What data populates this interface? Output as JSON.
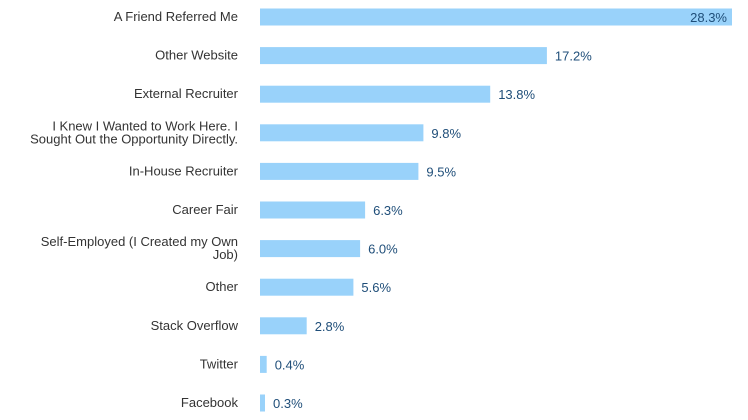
{
  "chart_data": {
    "type": "bar",
    "orientation": "horizontal",
    "categories": [
      "A Friend Referred Me",
      "Other Website",
      "External Recruiter",
      "I Knew I Wanted to Work Here. I Sought Out the Opportunity Directly.",
      "In-House Recruiter",
      "Career Fair",
      "Self-Employed (I Created my Own Job)",
      "Other",
      "Stack Overflow",
      "Twitter",
      "Facebook"
    ],
    "category_lines": [
      [
        "A Friend Referred Me"
      ],
      [
        "Other Website"
      ],
      [
        "External Recruiter"
      ],
      [
        "I Knew I Wanted to Work Here. I",
        "Sought Out the Opportunity Directly."
      ],
      [
        "In-House Recruiter"
      ],
      [
        "Career Fair"
      ],
      [
        "Self-Employed (I Created my Own",
        "Job)"
      ],
      [
        "Other"
      ],
      [
        "Stack Overflow"
      ],
      [
        "Twitter"
      ],
      [
        "Facebook"
      ]
    ],
    "values": [
      28.3,
      17.2,
      13.8,
      9.8,
      9.5,
      6.3,
      6.0,
      5.6,
      2.8,
      0.4,
      0.3
    ],
    "value_labels": [
      "28.3%",
      "17.2%",
      "13.8%",
      "9.8%",
      "9.5%",
      "6.3%",
      "6.0%",
      "5.6%",
      "2.8%",
      "0.4%",
      "0.3%"
    ],
    "title": "",
    "xlabel": "",
    "ylabel": "",
    "xlim": [
      0,
      28.3
    ],
    "grid": false,
    "legend": "none",
    "colors": {
      "bar": "#99d2fa",
      "value_text": "#1f4e79",
      "category_text": "#333333"
    }
  }
}
